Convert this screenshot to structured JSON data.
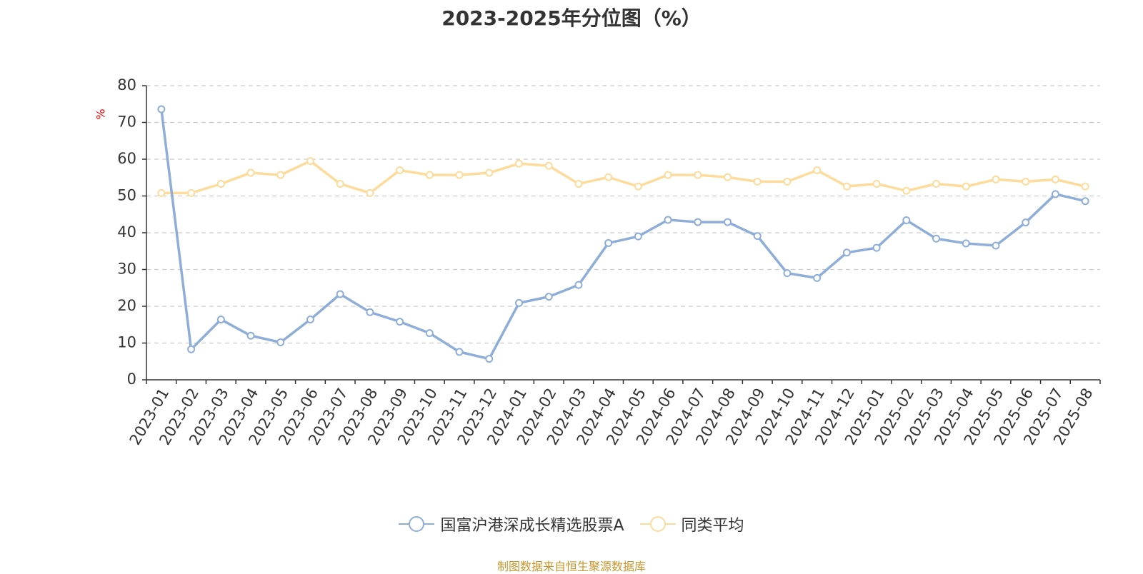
{
  "colors": {
    "series1": "#8eaed9",
    "series2": "#fddb9b",
    "axis": "#333333",
    "grid": "#cccccc",
    "unit": "#ff0000",
    "source": "#c8962c"
  },
  "chart_data": {
    "type": "line",
    "title": "2023-2025年分位图（%）",
    "ylabel": "%",
    "xlabel": "",
    "ylim": [
      0,
      80
    ],
    "yticks": [
      0,
      10,
      20,
      30,
      40,
      50,
      60,
      70,
      80
    ],
    "grid": true,
    "legend_position": "bottom",
    "categories": [
      "2023-01",
      "2023-02",
      "2023-03",
      "2023-04",
      "2023-05",
      "2023-06",
      "2023-07",
      "2023-08",
      "2023-09",
      "2023-10",
      "2023-11",
      "2023-12",
      "2024-01",
      "2024-02",
      "2024-03",
      "2024-04",
      "2024-05",
      "2024-06",
      "2024-07",
      "2024-08",
      "2024-09",
      "2024-10",
      "2024-11",
      "2024-12",
      "2025-01",
      "2025-02",
      "2025-03",
      "2025-04",
      "2025-05",
      "2025-06",
      "2025-07",
      "2025-08"
    ],
    "series": [
      {
        "name": "国富沪港深成长精选股票A",
        "values": [
          73.6,
          8.3,
          16.4,
          12.0,
          10.2,
          16.4,
          23.3,
          18.4,
          15.8,
          12.7,
          7.6,
          5.7,
          20.9,
          22.6,
          25.8,
          37.2,
          39.0,
          43.5,
          42.9,
          42.9,
          39.1,
          29.0,
          27.7,
          34.6,
          35.9,
          43.4,
          38.4,
          37.1,
          36.5,
          42.8,
          50.5,
          48.6
        ]
      },
      {
        "name": "同类平均",
        "values": [
          50.8,
          50.8,
          53.3,
          56.3,
          55.7,
          59.5,
          53.3,
          50.8,
          57.0,
          55.7,
          55.7,
          56.3,
          58.8,
          58.2,
          53.3,
          55.1,
          52.6,
          55.7,
          55.7,
          55.1,
          53.9,
          53.9,
          57.0,
          52.6,
          53.3,
          51.4,
          53.3,
          52.6,
          54.5,
          53.9,
          54.5,
          52.6
        ]
      }
    ]
  },
  "legend": {
    "items": [
      "国富沪港深成长精选股票A",
      "同类平均"
    ]
  },
  "source": "制图数据来自恒生聚源数据库"
}
